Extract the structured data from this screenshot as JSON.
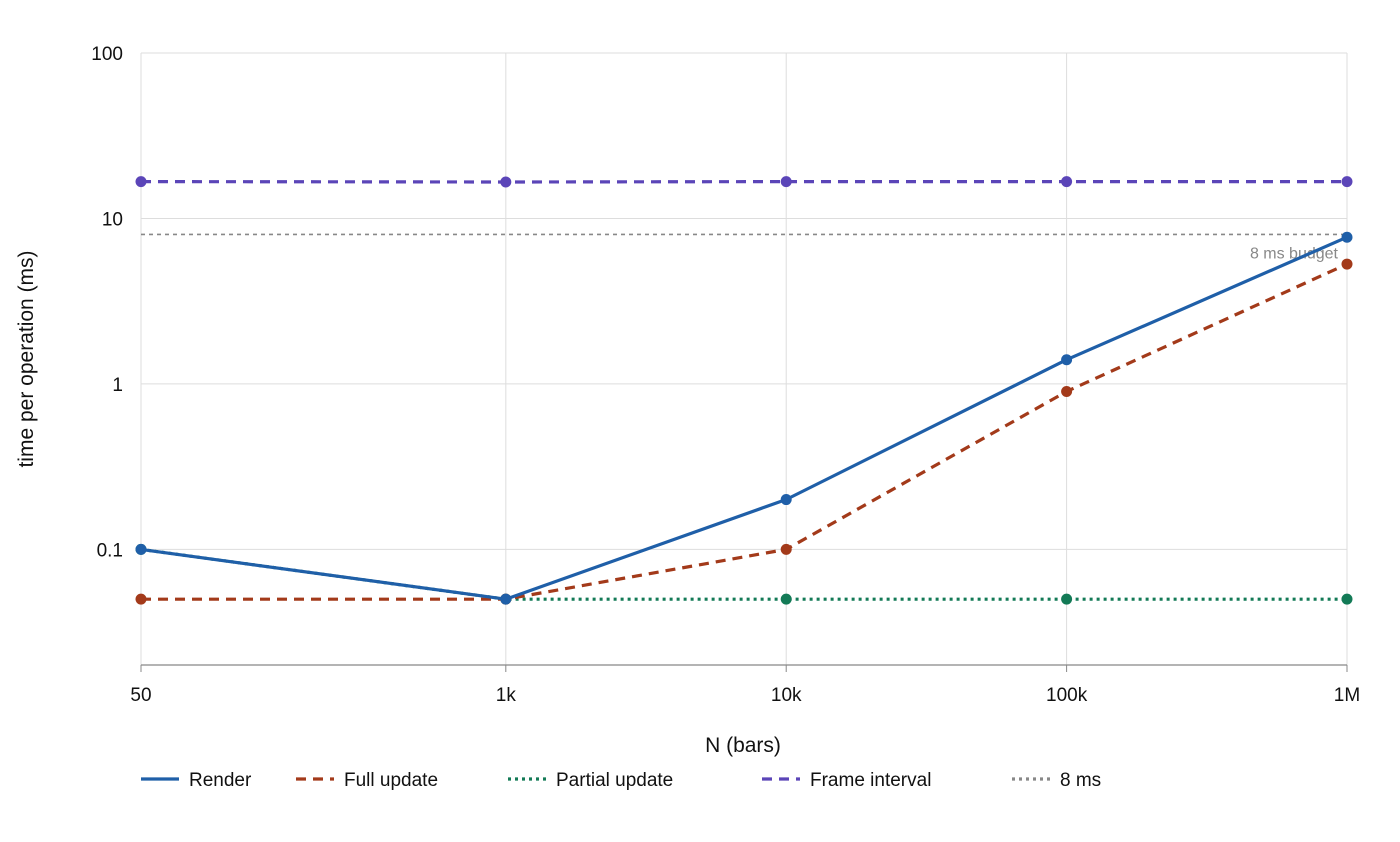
{
  "chart_data": {
    "type": "line",
    "title": "",
    "xlabel": "N (bars)",
    "ylabel": "time per operation (ms)",
    "x_scale": "log",
    "y_scale": "log",
    "x": [
      50,
      1000,
      10000,
      100000,
      1000000
    ],
    "x_tick_labels": [
      "50",
      "1k",
      "10k",
      "100k",
      "1M"
    ],
    "y_ticks": [
      0.1,
      1,
      10,
      100
    ],
    "y_tick_labels": [
      "0.1",
      "1",
      "10",
      "100"
    ],
    "xlim": [
      50,
      1000000
    ],
    "ylim": [
      0.02,
      100
    ],
    "grid": true,
    "legend_position": "bottom-left",
    "series": [
      {
        "name": "Render",
        "values": [
          0.1,
          0.05,
          0.2,
          1.4,
          7.7
        ],
        "color": "#1f5fa8",
        "dash": "solid"
      },
      {
        "name": "Full update",
        "values": [
          0.05,
          0.05,
          0.1,
          0.9,
          5.3
        ],
        "color": "#a33a1a",
        "dash": "dashed"
      },
      {
        "name": "Partial update",
        "values": [
          0.1,
          0.05,
          0.05,
          0.05,
          0.05
        ],
        "color": "#137a56",
        "dash": "dotted"
      },
      {
        "name": "Frame interval",
        "values": [
          16.7,
          16.6,
          16.7,
          16.7,
          16.7
        ],
        "color": "#5b45b8",
        "dash": "dashed"
      }
    ],
    "reference_line": {
      "name": "8 ms",
      "value": 8,
      "label": "8 ms budget",
      "color": "#888888"
    }
  }
}
